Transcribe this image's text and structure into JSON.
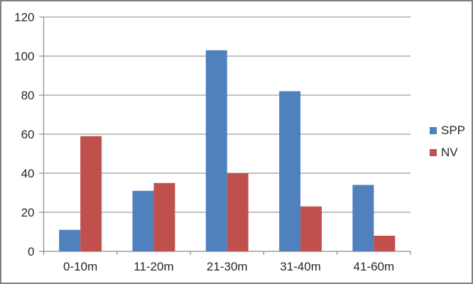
{
  "chart_data": {
    "type": "bar",
    "title": "",
    "xlabel": "",
    "ylabel": "",
    "categories": [
      "0-10m",
      "11-20m",
      "21-30m",
      "31-40m",
      "41-60m"
    ],
    "series": [
      {
        "name": "SPP",
        "color": "#4F81BD",
        "values": [
          11,
          31,
          103,
          82,
          34
        ]
      },
      {
        "name": "NV",
        "color": "#C0504D",
        "values": [
          59,
          35,
          40,
          23,
          8
        ]
      }
    ],
    "ylim": [
      0,
      120
    ],
    "yticks": [
      0,
      20,
      40,
      60,
      80,
      100,
      120
    ],
    "grid": true,
    "legend_position": "right",
    "colors": {
      "gridline": "#9C9C9C",
      "axis": "#8A8A8A",
      "tick_label": "#262626",
      "background": "#FFFFFF",
      "frame_border": "#808080"
    }
  }
}
